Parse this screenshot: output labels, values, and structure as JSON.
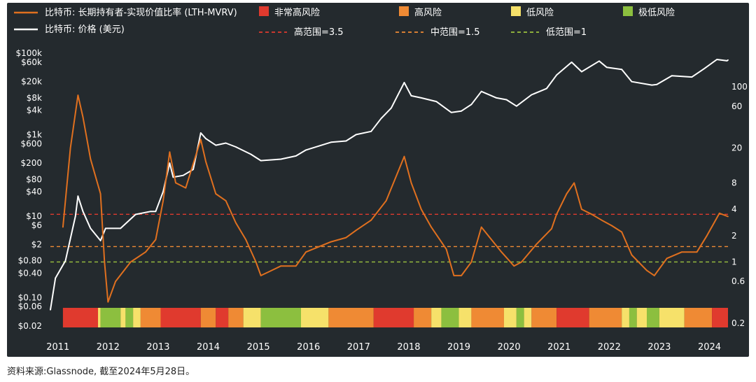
{
  "chart_data": {
    "type": "line",
    "legend": [
      {
        "key": "lth",
        "label": "比特币: 长期持有者-实现价值比率 (LTH-MVRV)",
        "kind": "line",
        "color": "#e0701f"
      },
      {
        "key": "price",
        "label": "比特币: 价格 (美元)",
        "kind": "line",
        "color": "#ffffff"
      },
      {
        "key": "very_high",
        "label": "非常高风险",
        "kind": "box",
        "color": "#e03a2e"
      },
      {
        "key": "high",
        "label": "高风险",
        "kind": "box",
        "color": "#ef8a34"
      },
      {
        "key": "low",
        "label": "低风险",
        "kind": "box",
        "color": "#f6e16a"
      },
      {
        "key": "very_low",
        "label": "极低风险",
        "kind": "box",
        "color": "#8cbf3f"
      },
      {
        "key": "hi_range",
        "label": "高范围=3.5",
        "kind": "dash",
        "color": "#e03a2e"
      },
      {
        "key": "mid_range",
        "label": "中范围=1.5",
        "kind": "dash",
        "color": "#ef8a34"
      },
      {
        "key": "low_range",
        "label": "低范围=1",
        "kind": "dash",
        "color": "#9cc23f"
      }
    ],
    "left_axis_ticks": [
      "$100k",
      "$60k",
      "$20k",
      "$8k",
      "$4k",
      "$1k",
      "$600",
      "$200",
      "$80",
      "$40",
      "$10",
      "$6",
      "$2",
      "$0.80",
      "$0.40",
      "$0.10",
      "$0.06",
      "$0.02"
    ],
    "right_axis_ticks": [
      "100",
      "60",
      "20",
      "8",
      "4",
      "2",
      "1",
      "0.6",
      "0.2"
    ],
    "x_ticks": [
      "2011",
      "2012",
      "2013",
      "2014",
      "2015",
      "2016",
      "2017",
      "2018",
      "2019",
      "2020",
      "2021",
      "2022",
      "2023",
      "2024"
    ],
    "reference_lines": [
      {
        "name": "高范围",
        "value": 3.5,
        "color": "#e03a2e"
      },
      {
        "name": "中范围",
        "value": 1.5,
        "color": "#ef8a34"
      },
      {
        "name": "低范围",
        "value": 1,
        "color": "#9cc23f"
      }
    ],
    "series": [
      {
        "name": "比特币: 价格 (美元)",
        "axis": "left",
        "color": "#ffffff",
        "points": [
          [
            2010.9,
            0.05
          ],
          [
            2011.0,
            0.3
          ],
          [
            2011.2,
            0.8
          ],
          [
            2011.4,
            10
          ],
          [
            2011.45,
            31
          ],
          [
            2011.55,
            13
          ],
          [
            2011.7,
            5
          ],
          [
            2011.9,
            2.5
          ],
          [
            2012.0,
            5
          ],
          [
            2012.3,
            5
          ],
          [
            2012.6,
            11
          ],
          [
            2012.9,
            13
          ],
          [
            2013.0,
            13
          ],
          [
            2013.15,
            40
          ],
          [
            2013.28,
            200
          ],
          [
            2013.35,
            90
          ],
          [
            2013.55,
            100
          ],
          [
            2013.75,
            140
          ],
          [
            2013.9,
            1100
          ],
          [
            2014.0,
            800
          ],
          [
            2014.2,
            550
          ],
          [
            2014.4,
            620
          ],
          [
            2014.6,
            500
          ],
          [
            2014.9,
            330
          ],
          [
            2015.1,
            230
          ],
          [
            2015.5,
            250
          ],
          [
            2015.8,
            300
          ],
          [
            2016.0,
            420
          ],
          [
            2016.5,
            650
          ],
          [
            2016.8,
            700
          ],
          [
            2017.0,
            1000
          ],
          [
            2017.3,
            1200
          ],
          [
            2017.5,
            2500
          ],
          [
            2017.7,
            4500
          ],
          [
            2017.96,
            19000
          ],
          [
            2018.1,
            9000
          ],
          [
            2018.3,
            8000
          ],
          [
            2018.6,
            6500
          ],
          [
            2018.9,
            3500
          ],
          [
            2019.1,
            3800
          ],
          [
            2019.3,
            5500
          ],
          [
            2019.5,
            11500
          ],
          [
            2019.8,
            8000
          ],
          [
            2020.0,
            7200
          ],
          [
            2020.2,
            5000
          ],
          [
            2020.5,
            9500
          ],
          [
            2020.8,
            13500
          ],
          [
            2021.0,
            29000
          ],
          [
            2021.3,
            60000
          ],
          [
            2021.5,
            35000
          ],
          [
            2021.85,
            64000
          ],
          [
            2022.0,
            45000
          ],
          [
            2022.3,
            40000
          ],
          [
            2022.5,
            20000
          ],
          [
            2022.9,
            16500
          ],
          [
            2023.0,
            17000
          ],
          [
            2023.3,
            28000
          ],
          [
            2023.7,
            26000
          ],
          [
            2023.95,
            42000
          ],
          [
            2024.2,
            70000
          ],
          [
            2024.4,
            65000
          ],
          [
            2024.42,
            68000
          ]
        ]
      },
      {
        "name": "比特币: 长期持有者-实现价值比率 (LTH-MVRV)",
        "axis": "right",
        "color": "#e0701f",
        "points": [
          [
            2011.15,
            2.5
          ],
          [
            2011.3,
            20
          ],
          [
            2011.45,
            80
          ],
          [
            2011.55,
            45
          ],
          [
            2011.7,
            15
          ],
          [
            2011.9,
            6
          ],
          [
            2011.98,
            1.0
          ],
          [
            2012.05,
            0.35
          ],
          [
            2012.2,
            0.6
          ],
          [
            2012.5,
            1.0
          ],
          [
            2012.8,
            1.3
          ],
          [
            2013.0,
            1.8
          ],
          [
            2013.15,
            5
          ],
          [
            2013.28,
            18
          ],
          [
            2013.4,
            8
          ],
          [
            2013.6,
            7
          ],
          [
            2013.9,
            25
          ],
          [
            2014.0,
            14
          ],
          [
            2014.2,
            6
          ],
          [
            2014.4,
            5
          ],
          [
            2014.6,
            2.8
          ],
          [
            2014.8,
            1.8
          ],
          [
            2015.0,
            1.0
          ],
          [
            2015.1,
            0.7
          ],
          [
            2015.5,
            0.9
          ],
          [
            2015.8,
            0.9
          ],
          [
            2016.0,
            1.3
          ],
          [
            2016.5,
            1.7
          ],
          [
            2016.8,
            1.9
          ],
          [
            2017.0,
            2.3
          ],
          [
            2017.3,
            3.0
          ],
          [
            2017.6,
            5
          ],
          [
            2017.96,
            16
          ],
          [
            2018.1,
            8
          ],
          [
            2018.3,
            4
          ],
          [
            2018.5,
            2.5
          ],
          [
            2018.8,
            1.4
          ],
          [
            2018.95,
            0.7
          ],
          [
            2019.1,
            0.7
          ],
          [
            2019.3,
            1.0
          ],
          [
            2019.5,
            2.5
          ],
          [
            2019.7,
            1.8
          ],
          [
            2019.9,
            1.3
          ],
          [
            2020.15,
            0.9
          ],
          [
            2020.3,
            1.0
          ],
          [
            2020.6,
            1.6
          ],
          [
            2020.9,
            2.4
          ],
          [
            2021.0,
            3.5
          ],
          [
            2021.2,
            6
          ],
          [
            2021.35,
            8
          ],
          [
            2021.5,
            4
          ],
          [
            2021.7,
            3.5
          ],
          [
            2021.9,
            3.0
          ],
          [
            2022.1,
            2.6
          ],
          [
            2022.3,
            2.2
          ],
          [
            2022.5,
            1.2
          ],
          [
            2022.8,
            0.8
          ],
          [
            2022.95,
            0.7
          ],
          [
            2023.2,
            1.1
          ],
          [
            2023.5,
            1.3
          ],
          [
            2023.8,
            1.3
          ],
          [
            2024.0,
            2.0
          ],
          [
            2024.25,
            3.6
          ],
          [
            2024.42,
            3.3
          ]
        ]
      }
    ],
    "risk_bands": [
      [
        2011.15,
        2011.85,
        "very_high"
      ],
      [
        2011.85,
        2011.9,
        "low"
      ],
      [
        2011.9,
        2012.3,
        "very_low"
      ],
      [
        2012.3,
        2012.4,
        "low"
      ],
      [
        2012.4,
        2012.55,
        "very_low"
      ],
      [
        2012.55,
        2012.7,
        "low"
      ],
      [
        2012.7,
        2013.1,
        "high"
      ],
      [
        2013.1,
        2013.9,
        "very_high"
      ],
      [
        2013.9,
        2014.2,
        "high"
      ],
      [
        2014.2,
        2014.45,
        "very_high"
      ],
      [
        2014.45,
        2014.75,
        "high"
      ],
      [
        2014.75,
        2015.1,
        "low"
      ],
      [
        2015.1,
        2015.9,
        "very_low"
      ],
      [
        2015.9,
        2016.45,
        "low"
      ],
      [
        2016.45,
        2017.35,
        "high"
      ],
      [
        2017.35,
        2018.15,
        "very_high"
      ],
      [
        2018.15,
        2018.5,
        "high"
      ],
      [
        2018.5,
        2018.7,
        "low"
      ],
      [
        2018.7,
        2019.05,
        "very_low"
      ],
      [
        2019.05,
        2019.3,
        "low"
      ],
      [
        2019.3,
        2019.95,
        "high"
      ],
      [
        2019.95,
        2020.2,
        "low"
      ],
      [
        2020.2,
        2020.35,
        "very_low"
      ],
      [
        2020.35,
        2020.5,
        "low"
      ],
      [
        2020.5,
        2021.0,
        "high"
      ],
      [
        2021.0,
        2021.65,
        "very_high"
      ],
      [
        2021.65,
        2022.3,
        "high"
      ],
      [
        2022.3,
        2022.45,
        "low"
      ],
      [
        2022.45,
        2022.6,
        "very_low"
      ],
      [
        2022.6,
        2022.8,
        "low"
      ],
      [
        2022.8,
        2023.05,
        "very_low"
      ],
      [
        2023.05,
        2023.55,
        "low"
      ],
      [
        2023.55,
        2024.1,
        "high"
      ],
      [
        2024.1,
        2024.42,
        "very_high"
      ]
    ],
    "xlim": [
      2010.9,
      2024.42
    ]
  },
  "source_note": "资料来源:Glassnode, 截至2024年5月28日。"
}
